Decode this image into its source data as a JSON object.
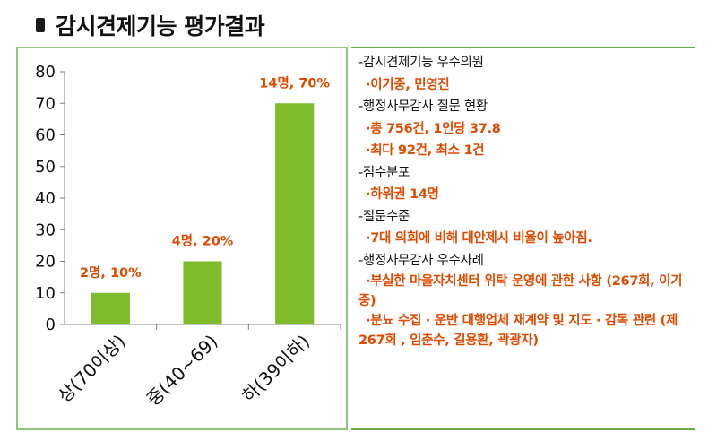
{
  "title": "감시견제기능 평가결과",
  "chart_data": {
    "type": "bar",
    "categories": [
      "상(70이상)",
      "중(40~69)",
      "하(39이하)"
    ],
    "values": [
      10,
      20,
      70
    ],
    "data_labels": [
      "2명, 10%",
      "4명, 20%",
      "14명, 70%"
    ],
    "ylim": [
      0,
      80
    ],
    "yticks": [
      0,
      10,
      20,
      30,
      40,
      50,
      60,
      70,
      80
    ],
    "grid": false,
    "legend": "none",
    "bar_color": "#7fba2a",
    "label_color": "#e04a00"
  },
  "summary": {
    "lines": [
      {
        "kind": "head",
        "text": "-감시견제기능 우수의원"
      },
      {
        "kind": "sub",
        "text": "·이기중, 민영진"
      },
      {
        "kind": "head",
        "text": "-행정사무감사 질문 현황"
      },
      {
        "kind": "sub",
        "text": "·총 756건, 1인당 37.8"
      },
      {
        "kind": "sub",
        "text": "·최다 92건, 최소 1건"
      },
      {
        "kind": "head",
        "text": "-점수분포"
      },
      {
        "kind": "sub",
        "text": "·하위권 14명"
      },
      {
        "kind": "head",
        "text": "-질문수준"
      },
      {
        "kind": "sub",
        "text": "·7대 의회에 비해 대안제시 비율이 높아짐."
      },
      {
        "kind": "head",
        "text": "-행정사무감사 우수사례"
      },
      {
        "kind": "subwrap",
        "text": "·부실한 마을자치센터 위탁 운영에 관한 사항 (267회, 이기중)"
      },
      {
        "kind": "subwrap",
        "text": "·분뇨 수집 · 운반 대행업체 재계약 및 지도 · 감독 관련 (제267회 , 임춘수, 길용환, 곽광자)"
      }
    ]
  }
}
